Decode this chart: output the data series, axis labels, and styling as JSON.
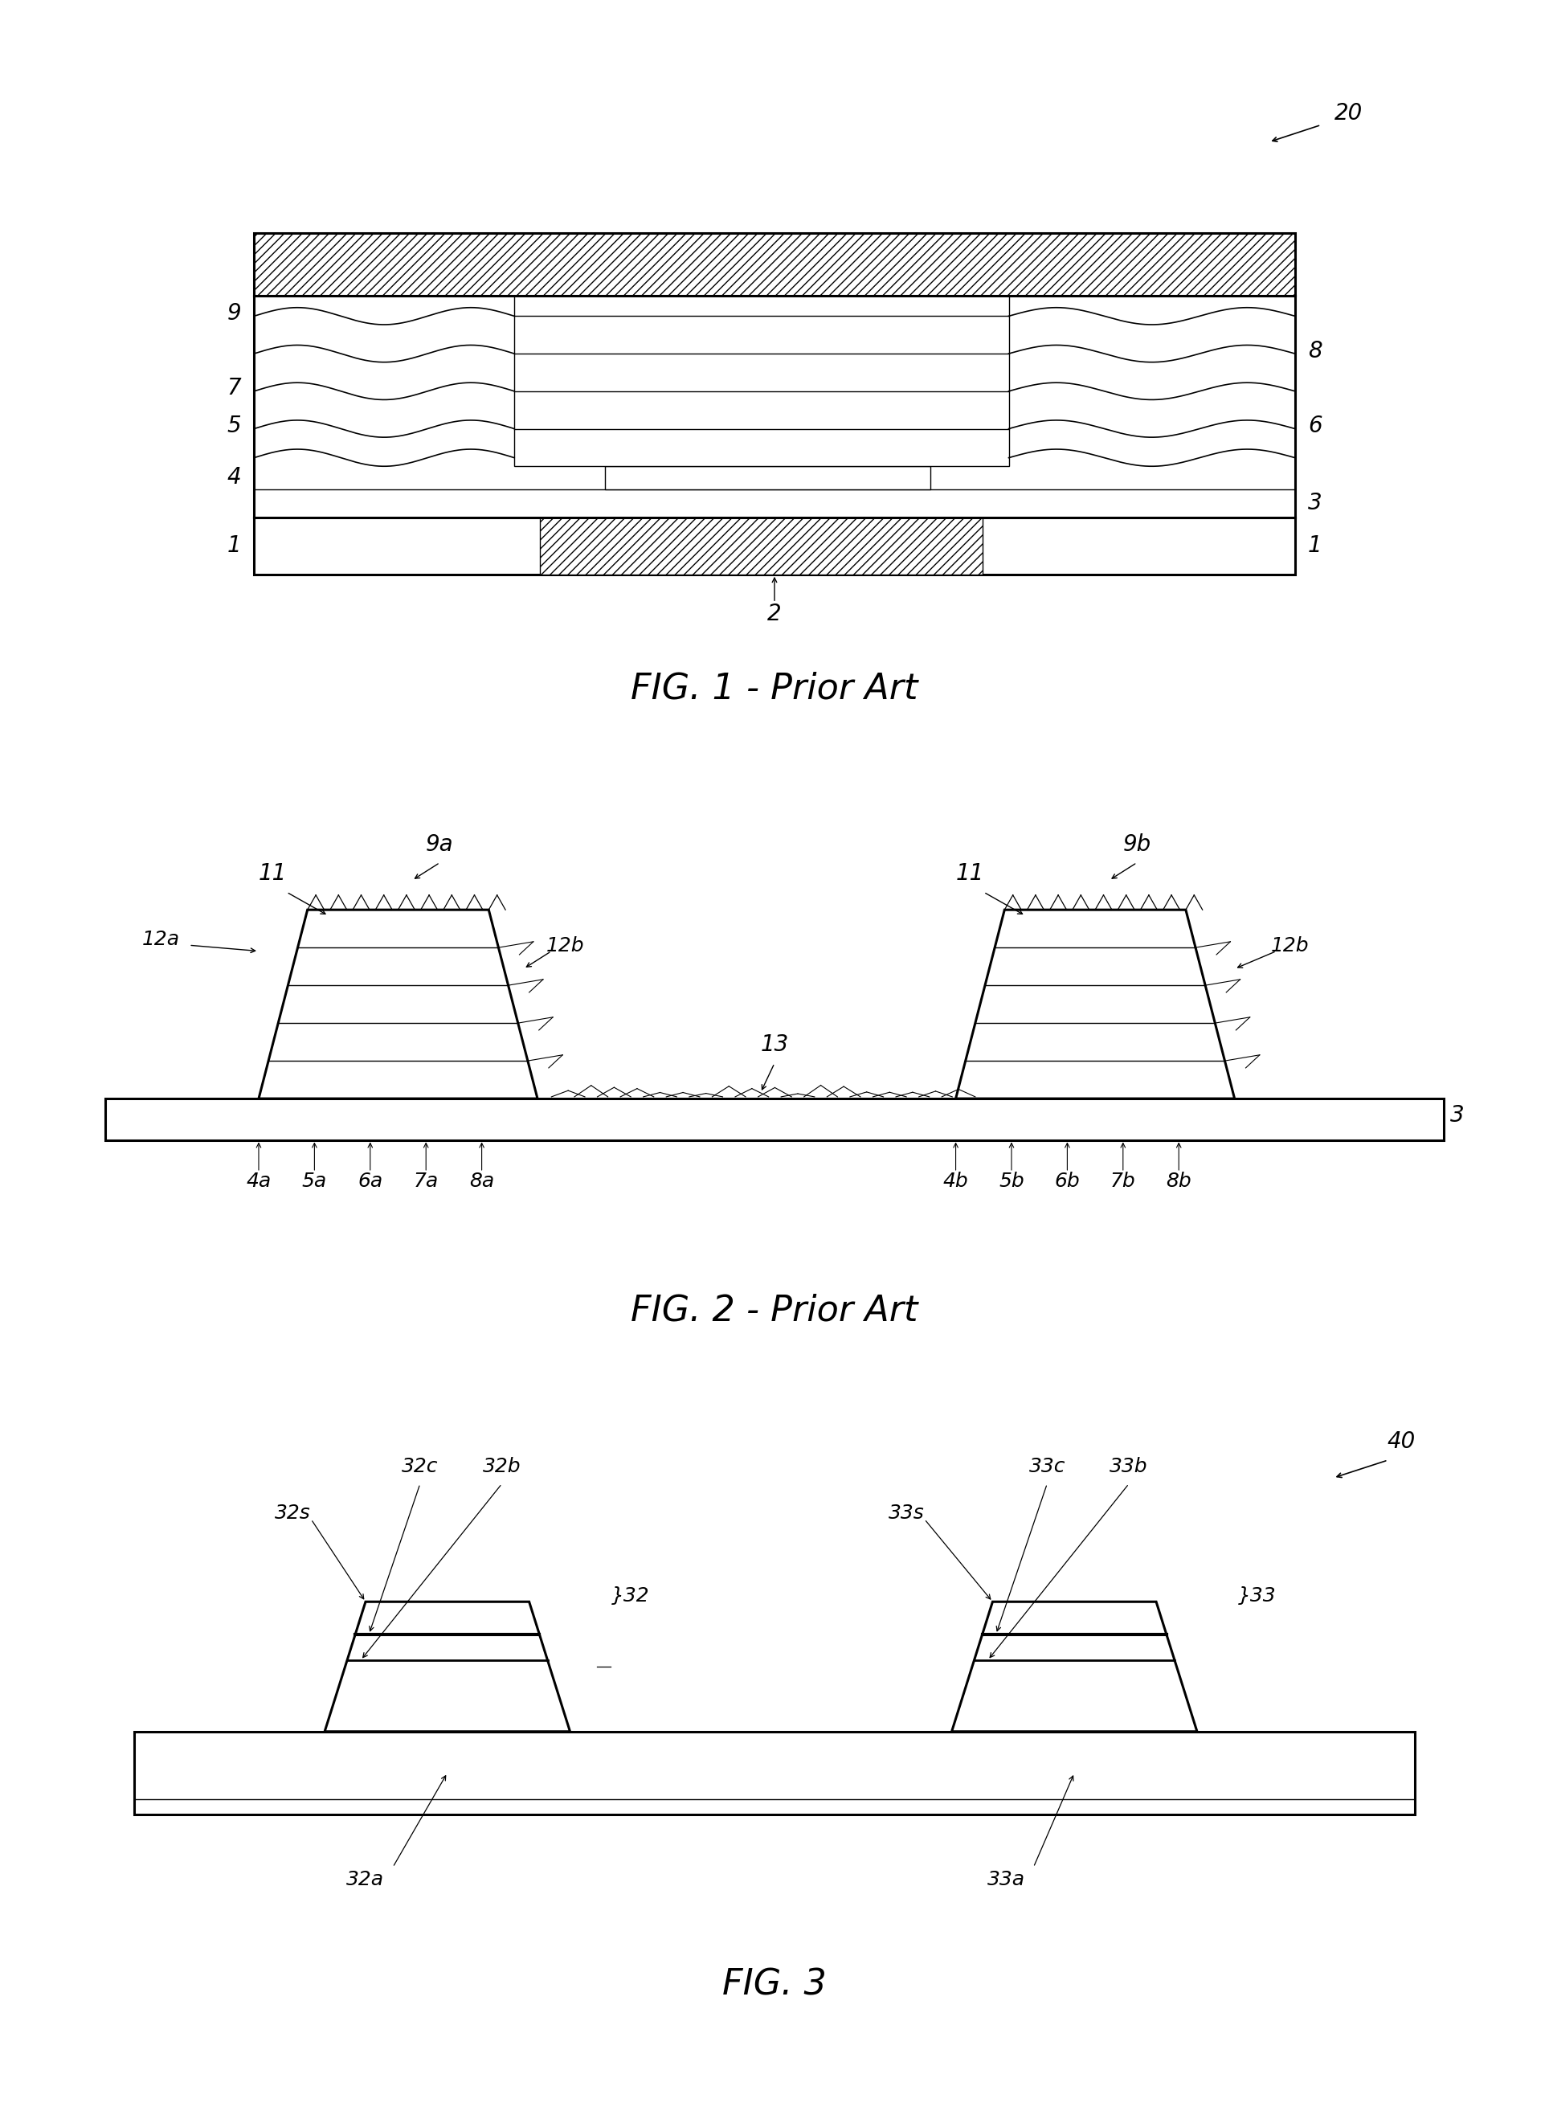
{
  "fig_width": 19.28,
  "fig_height": 26.22,
  "bg_color": "#ffffff",
  "fig1_title": "FIG. 1 - Prior Art",
  "fig2_title": "FIG. 2 - Prior Art",
  "fig3_title": "FIG. 3",
  "title_fontsize": 32,
  "label_fontsize": 20,
  "label_fontsize_small": 18
}
